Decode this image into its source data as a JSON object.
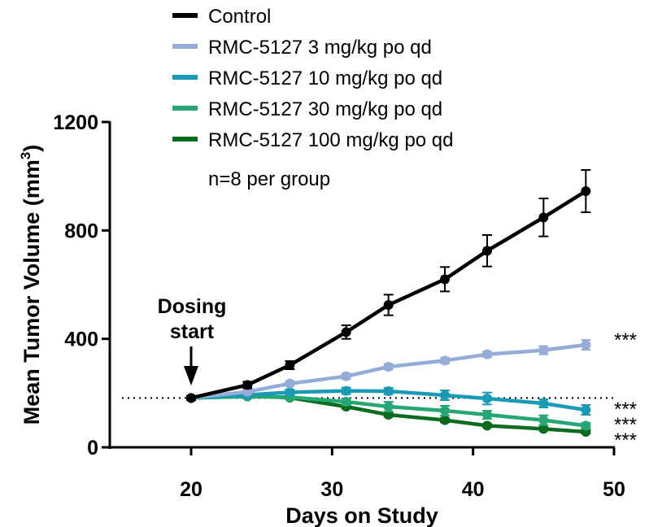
{
  "chart_data": {
    "type": "line",
    "xlabel": "Days on Study",
    "ylabel": "Mean Tumor Volume (mm",
    "ylabel_sup": "3",
    "ylabel_close": ")",
    "xlim": [
      15,
      50
    ],
    "ylim": [
      0,
      1200
    ],
    "xticks": [
      20,
      30,
      40,
      50
    ],
    "yticks": [
      0,
      400,
      800,
      1200
    ],
    "baseline": 182,
    "dosing_annotation": [
      "Dosing",
      "start"
    ],
    "dosing_day": 20,
    "legend_note": "n=8 per group",
    "series": [
      {
        "name": "Control",
        "color": "#000000",
        "x": [
          20,
          24,
          27,
          31,
          34,
          38,
          41,
          45,
          48
        ],
        "y": [
          182,
          230,
          303,
          425,
          525,
          620,
          725,
          848,
          945
        ],
        "err": [
          8,
          12,
          15,
          25,
          38,
          45,
          58,
          70,
          78
        ]
      },
      {
        "name": "RMC-5127 3 mg/kg po qd",
        "color": "#94add8",
        "x": [
          20,
          24,
          27,
          31,
          34,
          38,
          41,
          45,
          48
        ],
        "y": [
          182,
          205,
          235,
          262,
          297,
          320,
          343,
          358,
          378
        ],
        "err": [
          5,
          8,
          8,
          10,
          10,
          10,
          10,
          15,
          18
        ]
      },
      {
        "name": "RMC-5127 10 mg/kg po qd",
        "color": "#1a9bb5",
        "x": [
          20,
          24,
          27,
          31,
          34,
          38,
          41,
          45,
          48
        ],
        "y": [
          182,
          193,
          203,
          208,
          207,
          192,
          180,
          162,
          138
        ],
        "err": [
          5,
          8,
          10,
          12,
          12,
          18,
          22,
          15,
          18
        ]
      },
      {
        "name": "RMC-5127 30 mg/kg po qd",
        "color": "#26a672",
        "x": [
          20,
          24,
          27,
          31,
          34,
          38,
          41,
          45,
          48
        ],
        "y": [
          182,
          187,
          185,
          168,
          150,
          135,
          120,
          100,
          80
        ],
        "err": [
          5,
          6,
          8,
          12,
          18,
          18,
          15,
          18,
          10
        ]
      },
      {
        "name": "RMC-5127 100 mg/kg po qd",
        "color": "#0b6b1e",
        "x": [
          20,
          24,
          27,
          31,
          34,
          38,
          41,
          45,
          48
        ],
        "y": [
          182,
          190,
          183,
          150,
          120,
          100,
          80,
          68,
          57
        ],
        "err": [
          4,
          5,
          5,
          8,
          8,
          8,
          6,
          6,
          6
        ]
      }
    ],
    "significance": [
      {
        "label": "***",
        "series": "RMC-5127 3 mg/kg po qd"
      },
      {
        "label": "***",
        "series": "RMC-5127 10 mg/kg po qd"
      },
      {
        "label": "***",
        "series": "RMC-5127 30 mg/kg po qd"
      },
      {
        "label": "***",
        "series": "RMC-5127 100 mg/kg po qd"
      }
    ]
  }
}
